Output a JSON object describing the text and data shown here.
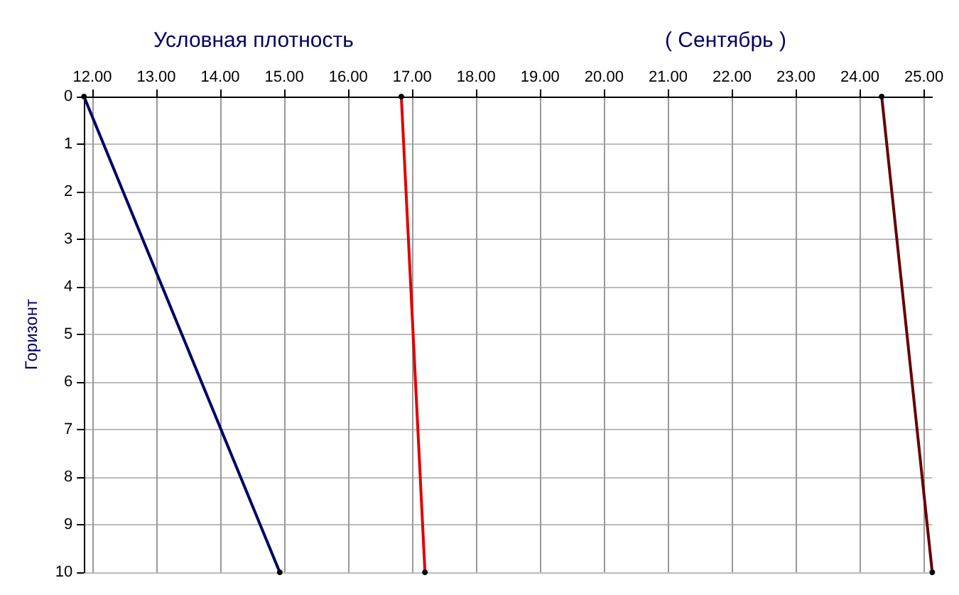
{
  "chart_data": {
    "type": "line",
    "title": "Условная плотность",
    "subtitle": "( Сентябрь )",
    "ylabel": "Горизонт",
    "series": [
      {
        "color": "#000066",
        "x": [
          11.87,
          14.93
        ],
        "values": [
          0,
          10
        ]
      },
      {
        "color": "#e00000",
        "x": [
          16.83,
          17.2
        ],
        "values": [
          0,
          10
        ]
      },
      {
        "color": "#660000",
        "x": [
          24.34,
          25.13
        ],
        "values": [
          0,
          10
        ]
      }
    ],
    "xlim": [
      11.87,
      25.13
    ],
    "xticks": [
      {
        "value": 12,
        "label": "12.00"
      },
      {
        "value": 13,
        "label": "13.00"
      },
      {
        "value": 14,
        "label": "14.00"
      },
      {
        "value": 15,
        "label": "15.00"
      },
      {
        "value": 16,
        "label": "16.00"
      },
      {
        "value": 17,
        "label": "17.00"
      },
      {
        "value": 18,
        "label": "18.00"
      },
      {
        "value": 19,
        "label": "19.00"
      },
      {
        "value": 20,
        "label": "20.00"
      },
      {
        "value": 21,
        "label": "21.00"
      },
      {
        "value": 22,
        "label": "22.00"
      },
      {
        "value": 23,
        "label": "23.00"
      },
      {
        "value": 24,
        "label": "24.00"
      },
      {
        "value": 25,
        "label": "25.00"
      }
    ],
    "ylim": [
      10,
      0
    ],
    "yticks": [
      0,
      1,
      2,
      3,
      4,
      5,
      6,
      7,
      8,
      9,
      10
    ],
    "grid": true,
    "marker": "circle",
    "line_style": "solid"
  }
}
